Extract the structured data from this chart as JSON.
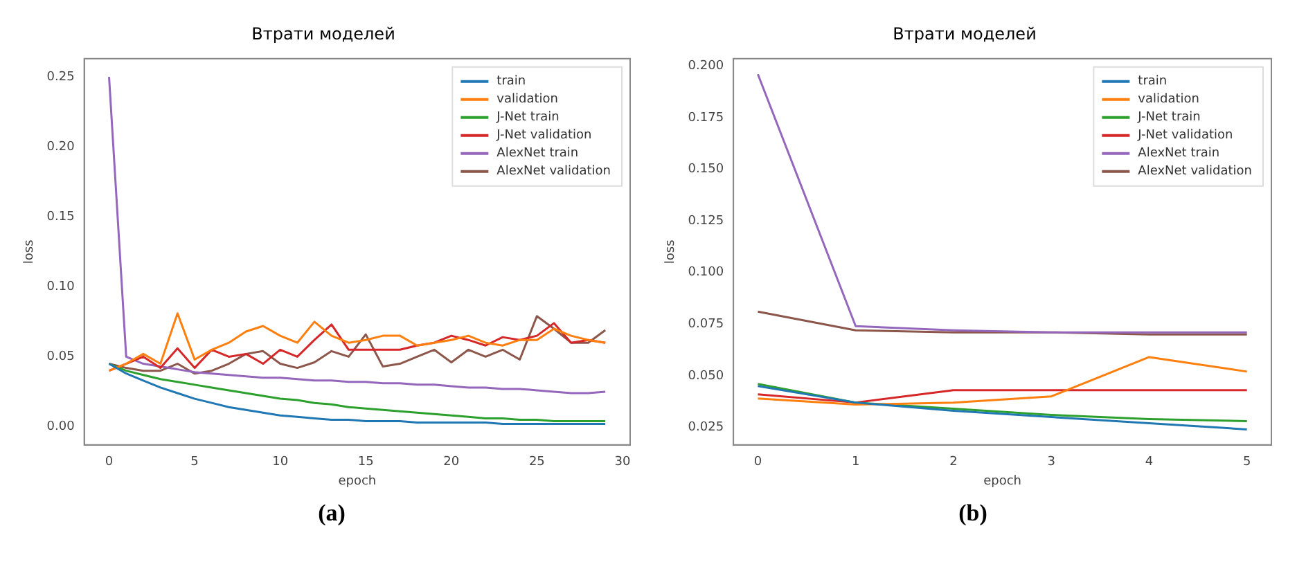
{
  "chart_data": [
    {
      "type": "line",
      "title": "Втрати моделей",
      "xlabel": "epoch",
      "ylabel": "loss",
      "legend": "top right",
      "annotations": [
        "(a)"
      ],
      "x": [
        0,
        1,
        2,
        3,
        4,
        5,
        6,
        7,
        8,
        9,
        10,
        11,
        12,
        13,
        14,
        15,
        16,
        17,
        18,
        19,
        20,
        21,
        22,
        23,
        24,
        25,
        26,
        27,
        28,
        29
      ],
      "xlim": [
        -1.45,
        30.45
      ],
      "xticks": [
        0,
        5,
        10,
        15,
        20,
        25,
        30
      ],
      "ylim": [
        -0.013,
        0.263
      ],
      "yticks": [
        {
          "value": 0,
          "label": "0.00"
        },
        {
          "value": 0.05,
          "label": "0.05"
        },
        {
          "value": 0.1,
          "label": "0.10"
        },
        {
          "value": 0.15,
          "label": "0.15"
        },
        {
          "value": 0.2,
          "label": "0.20"
        },
        {
          "value": 0.25,
          "label": "0.25"
        }
      ],
      "series": [
        {
          "name": "train",
          "color": "#1f77b4",
          "values": [
            0.045,
            0.038,
            0.033,
            0.028,
            0.024,
            0.02,
            0.017,
            0.014,
            0.012,
            0.01,
            0.008,
            0.007,
            0.006,
            0.005,
            0.005,
            0.004,
            0.004,
            0.004,
            0.003,
            0.003,
            0.003,
            0.003,
            0.003,
            0.002,
            0.002,
            0.002,
            0.002,
            0.002,
            0.002,
            0.002
          ]
        },
        {
          "name": "validation",
          "color": "#ff7f0e",
          "values": [
            0.04,
            0.045,
            0.052,
            0.045,
            0.081,
            0.048,
            0.055,
            0.06,
            0.068,
            0.072,
            0.065,
            0.06,
            0.075,
            0.065,
            0.06,
            0.062,
            0.065,
            0.065,
            0.058,
            0.06,
            0.062,
            0.065,
            0.06,
            0.058,
            0.062,
            0.062,
            0.07,
            0.065,
            0.062,
            0.06
          ]
        },
        {
          "name": "J-Net train",
          "color": "#2ca02c",
          "values": [
            0.045,
            0.04,
            0.037,
            0.034,
            0.032,
            0.03,
            0.028,
            0.026,
            0.024,
            0.022,
            0.02,
            0.019,
            0.017,
            0.016,
            0.014,
            0.013,
            0.012,
            0.011,
            0.01,
            0.009,
            0.008,
            0.007,
            0.006,
            0.006,
            0.005,
            0.005,
            0.004,
            0.004,
            0.004,
            0.004
          ]
        },
        {
          "name": "J-Net validation",
          "color": "#d62728",
          "values": [
            0.04,
            0.045,
            0.05,
            0.042,
            0.056,
            0.042,
            0.055,
            0.05,
            0.052,
            0.045,
            0.055,
            0.05,
            0.062,
            0.073,
            0.055,
            0.055,
            0.055,
            0.055,
            0.058,
            0.06,
            0.065,
            0.062,
            0.058,
            0.064,
            0.062,
            0.065,
            0.074,
            0.06,
            0.062,
            0.06
          ]
        },
        {
          "name": "AlexNet train",
          "color": "#9467bd",
          "values": [
            0.25,
            0.05,
            0.045,
            0.043,
            0.041,
            0.039,
            0.038,
            0.037,
            0.036,
            0.035,
            0.035,
            0.034,
            0.033,
            0.033,
            0.032,
            0.032,
            0.031,
            0.031,
            0.03,
            0.03,
            0.029,
            0.028,
            0.028,
            0.027,
            0.027,
            0.026,
            0.025,
            0.024,
            0.024,
            0.025
          ]
        },
        {
          "name": "AlexNet validation",
          "color": "#8c564b",
          "values": [
            0.045,
            0.042,
            0.04,
            0.04,
            0.045,
            0.038,
            0.04,
            0.045,
            0.052,
            0.054,
            0.045,
            0.042,
            0.046,
            0.054,
            0.05,
            0.066,
            0.043,
            0.045,
            0.05,
            0.055,
            0.046,
            0.055,
            0.05,
            0.055,
            0.048,
            0.079,
            0.07,
            0.06,
            0.06,
            0.069
          ]
        }
      ]
    },
    {
      "type": "line",
      "title": "Втрати моделей",
      "xlabel": "epoch",
      "ylabel": "loss",
      "legend": "top right",
      "annotations": [
        "(b)"
      ],
      "x": [
        0,
        1,
        2,
        3,
        4,
        5
      ],
      "xlim": [
        -0.25,
        5.25
      ],
      "xticks": [
        0,
        1,
        2,
        3,
        4,
        5
      ],
      "ylim": [
        0.0165,
        0.2035
      ],
      "yticks": [
        {
          "value": 0.025,
          "label": "0.025"
        },
        {
          "value": 0.05,
          "label": "0.050"
        },
        {
          "value": 0.075,
          "label": "0.075"
        },
        {
          "value": 0.1,
          "label": "0.100"
        },
        {
          "value": 0.125,
          "label": "0.125"
        },
        {
          "value": 0.15,
          "label": "0.150"
        },
        {
          "value": 0.175,
          "label": "0.175"
        },
        {
          "value": 0.2,
          "label": "0.200"
        }
      ],
      "series": [
        {
          "name": "train",
          "color": "#1f77b4",
          "values": [
            0.045,
            0.037,
            0.033,
            0.03,
            0.027,
            0.024
          ]
        },
        {
          "name": "validation",
          "color": "#ff7f0e",
          "values": [
            0.039,
            0.036,
            0.037,
            0.04,
            0.059,
            0.052
          ]
        },
        {
          "name": "J-Net train",
          "color": "#2ca02c",
          "values": [
            0.046,
            0.037,
            0.034,
            0.031,
            0.029,
            0.028
          ]
        },
        {
          "name": "J-Net validation",
          "color": "#d62728",
          "values": [
            0.041,
            0.037,
            0.043,
            0.043,
            0.043,
            0.043
          ]
        },
        {
          "name": "AlexNet train",
          "color": "#9467bd",
          "values": [
            0.196,
            0.074,
            0.072,
            0.071,
            0.071,
            0.071
          ]
        },
        {
          "name": "AlexNet validation",
          "color": "#8c564b",
          "values": [
            0.081,
            0.072,
            0.071,
            0.071,
            0.07,
            0.07
          ]
        }
      ]
    }
  ]
}
